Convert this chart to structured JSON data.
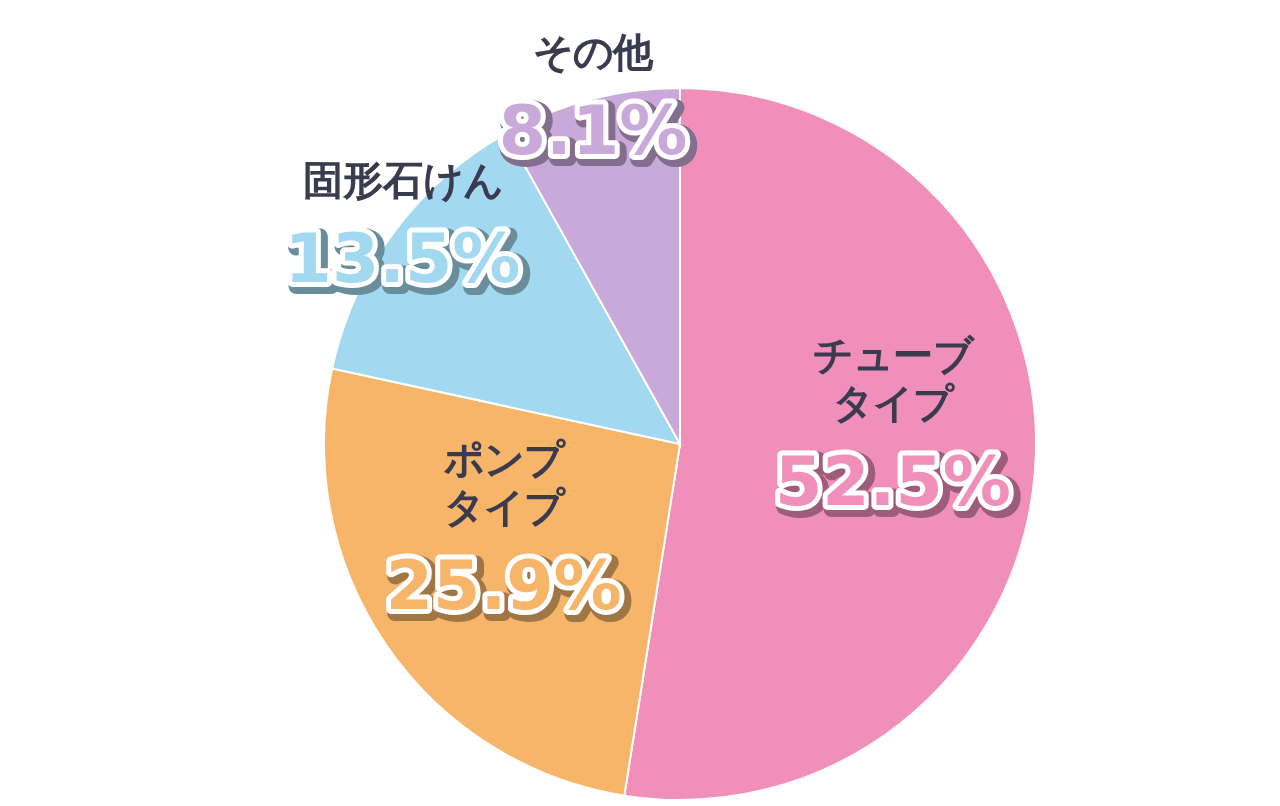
{
  "chart_data": {
    "type": "pie",
    "categories": [
      "チューブタイプ",
      "ポンプタイプ",
      "固形石けん",
      "その他"
    ],
    "values": [
      52.5,
      25.9,
      13.5,
      8.1
    ],
    "colors": [
      "#f18fbb",
      "#f7b56a",
      "#a3d9f0",
      "#c9a9d9"
    ],
    "value_labels": [
      "52.5%",
      "25.9%",
      "13.5%",
      "8.1%"
    ]
  }
}
